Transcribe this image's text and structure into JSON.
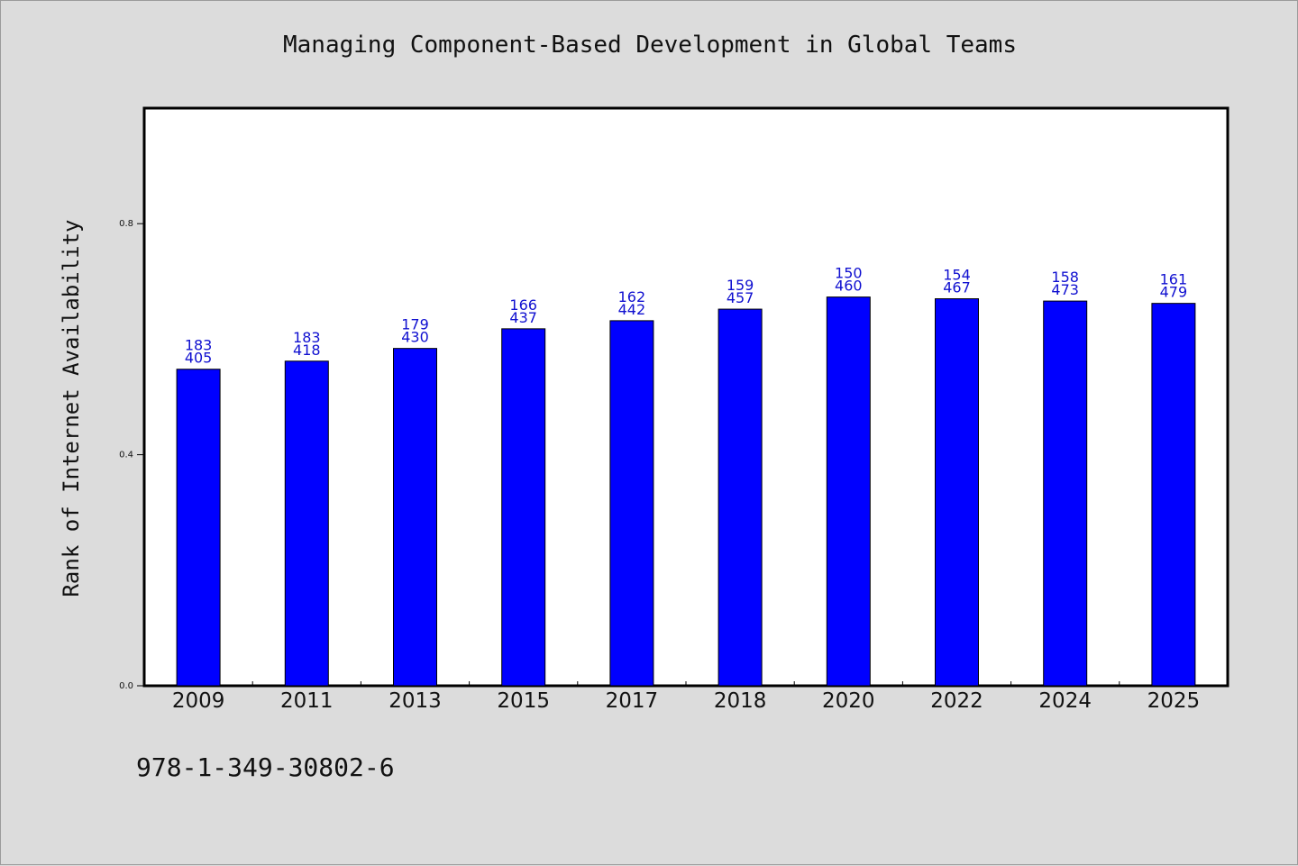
{
  "page": {
    "code": "978-1-349-30802-6"
  },
  "chart_data": {
    "type": "bar",
    "title": "Managing Component-Based Development in Global Teams",
    "xlabel": "",
    "ylabel": "Rank of Internet Availability",
    "ylim": [
      0.0,
      1.0
    ],
    "yticks": [
      "0.0",
      "0.4",
      "0.8"
    ],
    "categories": [
      "2009",
      "2011",
      "2013",
      "2015",
      "2017",
      "2018",
      "2020",
      "2022",
      "2024",
      "2025"
    ],
    "values": [
      0.548,
      0.562,
      0.584,
      0.618,
      0.632,
      0.652,
      0.673,
      0.67,
      0.666,
      0.662
    ],
    "labels_top": [
      "183",
      "183",
      "179",
      "166",
      "162",
      "159",
      "150",
      "154",
      "158",
      "161"
    ],
    "labels_bottom": [
      "405",
      "418",
      "430",
      "437",
      "442",
      "457",
      "460",
      "467",
      "473",
      "479"
    ],
    "bar_color": "#0000ff",
    "label_color": "#1010d0",
    "grid": false,
    "legend": "none"
  }
}
